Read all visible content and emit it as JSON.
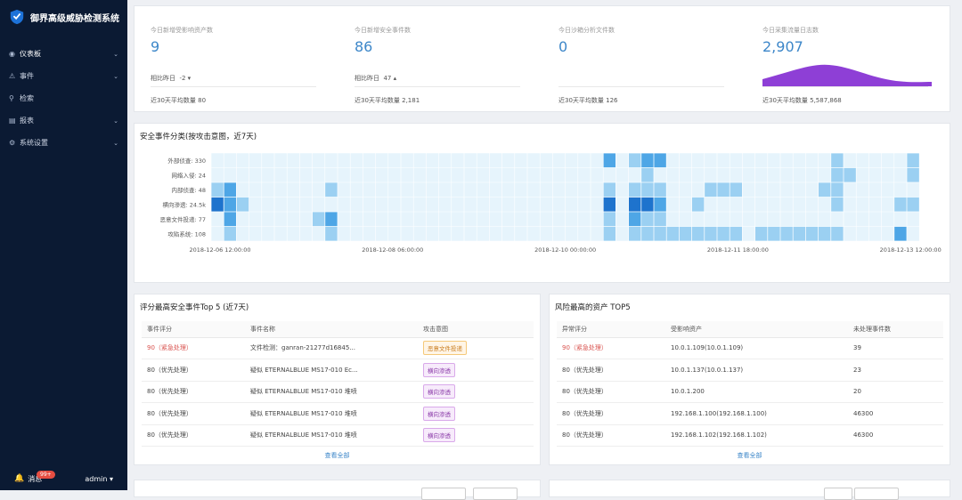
{
  "app": {
    "title": "御界高级威胁检测系统"
  },
  "sidebar": {
    "items": [
      {
        "label": "仪表板",
        "icon": "dashboard-icon",
        "glyph": "◉",
        "chevron": true
      },
      {
        "label": "事件",
        "icon": "warning-icon",
        "glyph": "⚠",
        "chevron": true
      },
      {
        "label": "检索",
        "icon": "search-icon",
        "glyph": "⚲",
        "chevron": false
      },
      {
        "label": "报表",
        "icon": "report-icon",
        "glyph": "▤",
        "chevron": true
      },
      {
        "label": "系统设置",
        "icon": "gear-icon",
        "glyph": "⚙",
        "chevron": true
      }
    ],
    "messages_label": "消息",
    "messages_badge": "99+",
    "user": "admin ▾"
  },
  "kpis": [
    {
      "label": "今日新增受影响资产数",
      "value": "9",
      "compare_label": "相比昨日",
      "compare_value": "-2 ▾",
      "avg": "近30天平均数量 80"
    },
    {
      "label": "今日新增安全事件数",
      "value": "86",
      "compare_label": "相比昨日",
      "compare_value": "47 ▴",
      "avg": "近30天平均数量 2,181"
    },
    {
      "label": "今日沙箱分析文件数",
      "value": "0",
      "compare_label": "",
      "compare_value": "",
      "avg": "近30天平均数量 126"
    },
    {
      "label": "今日采集流量日志数",
      "value": "2,907",
      "compare_label": "",
      "compare_value": "",
      "avg": "近30天平均数量 5,587,868"
    }
  ],
  "chart_data": {
    "type": "heatmap",
    "title": "安全事件分类(按攻击意图，近7天)",
    "y_categories": [
      "外部侦查: 330",
      "网络入侵: 24",
      "内部侦查: 48",
      "横向渗透: 24.5k",
      "恶意文件投递: 77",
      "攻陷系统: 108"
    ],
    "x_tick_labels": [
      "2018-12-06 12:00:00",
      "2018-12-08 06:00:00",
      "2018-12-10 00:00:00",
      "2018-12-11 18:00:00",
      "2018-12-13 12:00:00"
    ],
    "columns": 56,
    "levels": [
      "#e6f4fc",
      "#9bd0f2",
      "#4ea6e6",
      "#1e73cd"
    ],
    "cells": [
      [
        0,
        31,
        2
      ],
      [
        0,
        33,
        1
      ],
      [
        0,
        34,
        2
      ],
      [
        0,
        35,
        2
      ],
      [
        0,
        49,
        1
      ],
      [
        0,
        55,
        1
      ],
      [
        1,
        34,
        1
      ],
      [
        1,
        49,
        1
      ],
      [
        1,
        50,
        1
      ],
      [
        1,
        55,
        1
      ],
      [
        2,
        0,
        1
      ],
      [
        2,
        1,
        2
      ],
      [
        2,
        9,
        1
      ],
      [
        2,
        31,
        1
      ],
      [
        2,
        33,
        1
      ],
      [
        2,
        34,
        1
      ],
      [
        2,
        35,
        1
      ],
      [
        2,
        39,
        1
      ],
      [
        2,
        40,
        1
      ],
      [
        2,
        41,
        1
      ],
      [
        2,
        48,
        1
      ],
      [
        2,
        49,
        1
      ],
      [
        3,
        0,
        3
      ],
      [
        3,
        1,
        2
      ],
      [
        3,
        2,
        1
      ],
      [
        3,
        31,
        3
      ],
      [
        3,
        33,
        3
      ],
      [
        3,
        34,
        3
      ],
      [
        3,
        35,
        2
      ],
      [
        3,
        38,
        1
      ],
      [
        3,
        49,
        1
      ],
      [
        3,
        54,
        1
      ],
      [
        3,
        55,
        1
      ],
      [
        4,
        1,
        2
      ],
      [
        4,
        8,
        1
      ],
      [
        4,
        9,
        2
      ],
      [
        4,
        31,
        1
      ],
      [
        4,
        33,
        2
      ],
      [
        4,
        34,
        1
      ],
      [
        4,
        35,
        1
      ],
      [
        5,
        1,
        1
      ],
      [
        5,
        9,
        1
      ],
      [
        5,
        31,
        1
      ],
      [
        5,
        33,
        1
      ],
      [
        5,
        34,
        1
      ],
      [
        5,
        35,
        1
      ],
      [
        5,
        36,
        1
      ],
      [
        5,
        37,
        1
      ],
      [
        5,
        38,
        1
      ],
      [
        5,
        39,
        1
      ],
      [
        5,
        40,
        1
      ],
      [
        5,
        41,
        1
      ],
      [
        5,
        43,
        1
      ],
      [
        5,
        44,
        1
      ],
      [
        5,
        45,
        1
      ],
      [
        5,
        46,
        1
      ],
      [
        5,
        47,
        1
      ],
      [
        5,
        48,
        1
      ],
      [
        5,
        49,
        1
      ],
      [
        5,
        54,
        2
      ]
    ]
  },
  "top_events": {
    "title": "评分最高安全事件Top 5 (近7天)",
    "headers": [
      "事件评分",
      "事件名称",
      "攻击意图"
    ],
    "rows": [
      {
        "score": "90（紧急处理）",
        "urgent": true,
        "name": "文件检测：ganran-21277d16845...",
        "tag": "恶意文件投递",
        "tag_color": "orange"
      },
      {
        "score": "80（优先处理）",
        "urgent": false,
        "name": "疑似 ETERNALBLUE MS17-010 Ec...",
        "tag": "横向渗透",
        "tag_color": "purple"
      },
      {
        "score": "80（优先处理）",
        "urgent": false,
        "name": "疑似 ETERNALBLUE MS17-010 堆喷",
        "tag": "横向渗透",
        "tag_color": "purple"
      },
      {
        "score": "80（优先处理）",
        "urgent": false,
        "name": "疑似 ETERNALBLUE MS17-010 堆喷",
        "tag": "横向渗透",
        "tag_color": "purple"
      },
      {
        "score": "80（优先处理）",
        "urgent": false,
        "name": "疑似 ETERNALBLUE MS17-010 堆喷",
        "tag": "横向渗透",
        "tag_color": "purple"
      }
    ],
    "view_all": "查看全部"
  },
  "top_assets": {
    "title": "风险最高的资产 TOP5",
    "headers": [
      "异常评分",
      "受影响资产",
      "未处理事件数"
    ],
    "rows": [
      {
        "score": "90（紧急处理）",
        "urgent": true,
        "asset": "10.0.1.109(10.0.1.109)",
        "count": "39"
      },
      {
        "score": "80（优先处理）",
        "urgent": false,
        "asset": "10.0.1.137(10.0.1.137)",
        "count": "23"
      },
      {
        "score": "80（优先处理）",
        "urgent": false,
        "asset": "10.0.1.200",
        "count": "20"
      },
      {
        "score": "80（优先处理）",
        "urgent": false,
        "asset": "192.168.1.100(192.168.1.100)",
        "count": "46300"
      },
      {
        "score": "80（优先处理）",
        "urgent": false,
        "asset": "192.168.1.102(192.168.1.102)",
        "count": "46300"
      }
    ],
    "view_all": "查看全部"
  },
  "colors": {
    "accent": "#3d87c9",
    "sidebar_bg": "#0b1a33",
    "urgent": "#d9534f",
    "spark": "#8e3fd6"
  }
}
